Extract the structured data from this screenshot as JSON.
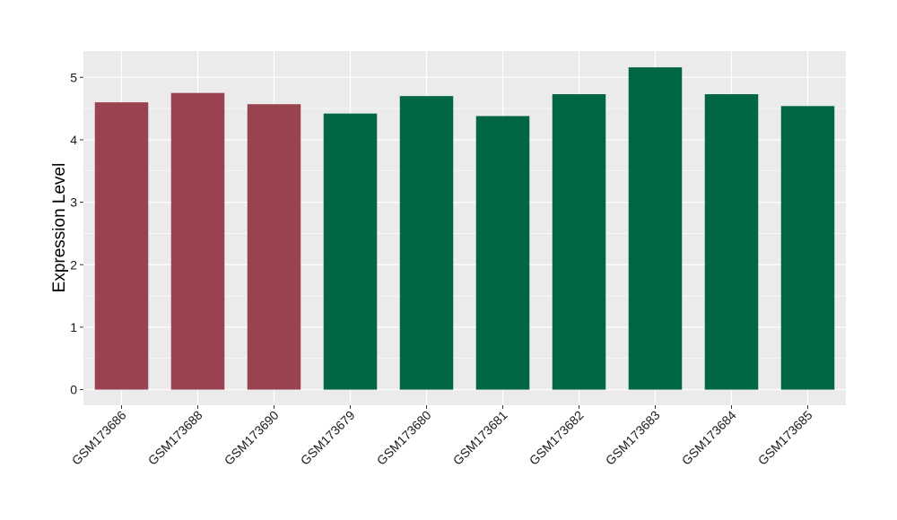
{
  "chart_data": {
    "type": "bar",
    "title": "",
    "xlabel": "",
    "ylabel": "Expression Level",
    "categories": [
      "GSM173686",
      "GSM173688",
      "GSM173690",
      "GSM173679",
      "GSM173680",
      "GSM173681",
      "GSM173682",
      "GSM173683",
      "GSM173684",
      "GSM173685"
    ],
    "values": [
      4.6,
      4.75,
      4.57,
      4.42,
      4.7,
      4.38,
      4.73,
      5.16,
      4.73,
      4.54
    ],
    "bar_colors": [
      "#9a4350",
      "#9a4350",
      "#9a4350",
      "#006644",
      "#006644",
      "#006644",
      "#006644",
      "#006644",
      "#006644",
      "#006644"
    ],
    "ylim": [
      -0.25,
      5.42
    ],
    "yticks": [
      0,
      1,
      2,
      3,
      4,
      5
    ],
    "grid": true,
    "panel_background": "#ebebeb",
    "legend": "none"
  }
}
